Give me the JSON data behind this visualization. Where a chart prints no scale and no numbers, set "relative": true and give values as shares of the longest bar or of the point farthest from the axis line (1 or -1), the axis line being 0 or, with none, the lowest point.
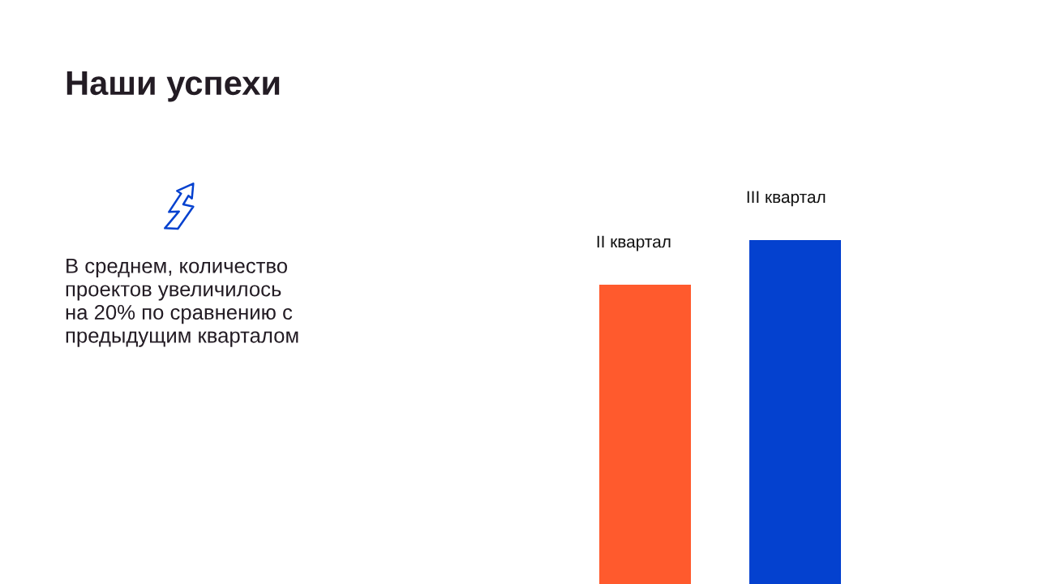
{
  "chart_data": {
    "type": "bar",
    "title": "Наши успехи",
    "categories": [
      "II квартал",
      "III квартал"
    ],
    "values": [
      0.87,
      1
    ],
    "colors": [
      "#ff5a2d",
      "#0441cf"
    ],
    "relative": true,
    "annotations": [
      "В среднем, количество\nпроектов увеличилось\nна 20% по сравнению с\nпредыдущим кварталом"
    ]
  }
}
